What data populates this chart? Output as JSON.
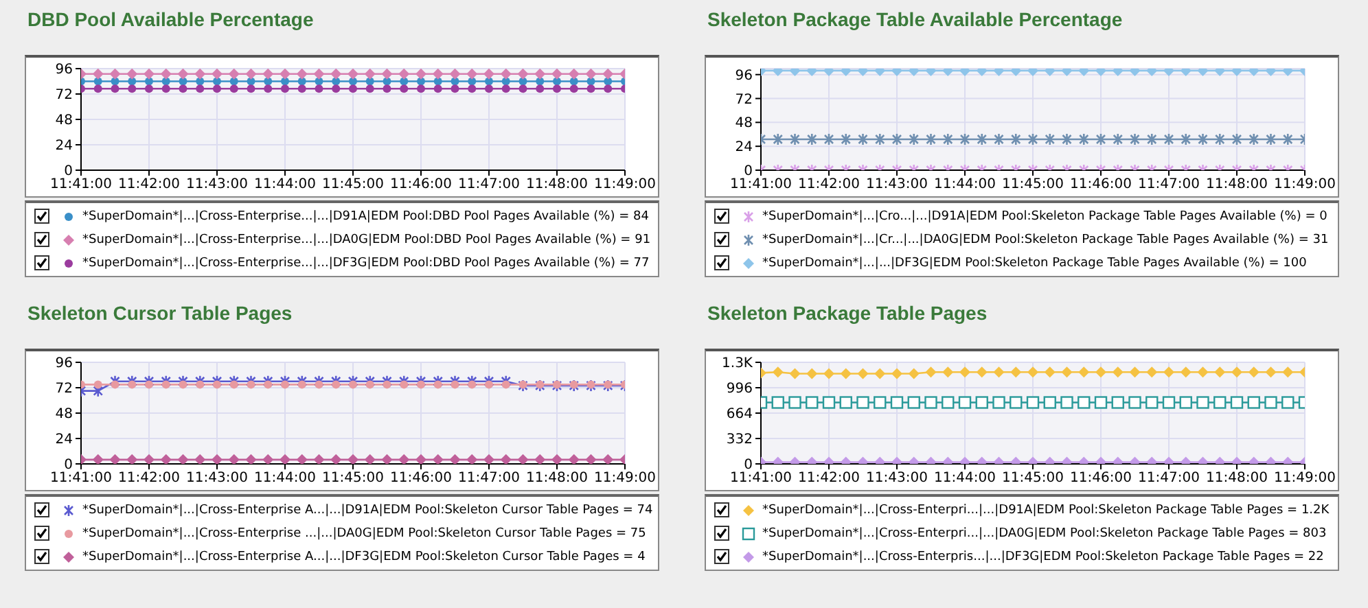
{
  "chart_data": [
    {
      "type": "line",
      "title": "DBD Pool Available Percentage",
      "x": [
        11.683333,
        11.6875,
        11.691667,
        11.695833,
        11.7,
        11.704167,
        11.708333,
        11.7125,
        11.716667,
        11.720833,
        11.725,
        11.729167,
        11.733333,
        11.7375,
        11.741667,
        11.745833,
        11.75,
        11.754167,
        11.758333,
        11.7625,
        11.766667,
        11.770833,
        11.775,
        11.779167,
        11.783333,
        11.7875,
        11.791667,
        11.795833,
        11.8,
        11.804167,
        11.808333,
        11.8125,
        11.816667
      ],
      "xlim": [
        11.683333,
        11.816667
      ],
      "xticks": [
        {
          "value": 11.683333,
          "label": "11:41:00"
        },
        {
          "value": 11.7,
          "label": "11:42:00"
        },
        {
          "value": 11.716667,
          "label": "11:43:00"
        },
        {
          "value": 11.733333,
          "label": "11:44:00"
        },
        {
          "value": 11.75,
          "label": "11:45:00"
        },
        {
          "value": 11.766667,
          "label": "11:46:00"
        },
        {
          "value": 11.783333,
          "label": "11:47:00"
        },
        {
          "value": 11.8,
          "label": "11:48:00"
        },
        {
          "value": 11.816667,
          "label": "11:49:00"
        }
      ],
      "ylim": [
        0,
        96
      ],
      "yticks": [
        0,
        24,
        48,
        72,
        96
      ],
      "grid": true,
      "legend": "bottom",
      "series": [
        {
          "name": "*SuperDomain*|...|Cross-Enterprise...|...|D91A|EDM Pool:DBD Pool Pages Available (%) = 84",
          "color": "#3a8fc8",
          "marker": "circle",
          "values": [
            84,
            84,
            84,
            84,
            84,
            84,
            84,
            84,
            84,
            84,
            84,
            84,
            84,
            84,
            84,
            84,
            84,
            84,
            84,
            84,
            84,
            84,
            84,
            84,
            84,
            84,
            84,
            84,
            84,
            84,
            84,
            84,
            84
          ]
        },
        {
          "name": "*SuperDomain*|...|Cross-Enterprise...|...|DA0G|EDM Pool:DBD Pool Pages Available (%) = 91",
          "color": "#d77fb0",
          "marker": "diamond",
          "values": [
            91,
            91,
            91,
            91,
            91,
            91,
            91,
            91,
            91,
            91,
            91,
            91,
            91,
            91,
            91,
            91,
            91,
            91,
            91,
            91,
            91,
            91,
            91,
            91,
            91,
            91,
            91,
            91,
            91,
            91,
            91,
            91,
            91
          ]
        },
        {
          "name": "*SuperDomain*|...|Cross-Enterprise...|...|DF3G|EDM Pool:DBD Pool Pages Available (%) = 77",
          "color": "#9b3c9e",
          "marker": "circle",
          "values": [
            77,
            77,
            77,
            77,
            77,
            77,
            77,
            77,
            77,
            77,
            77,
            77,
            77,
            77,
            77,
            77,
            77,
            77,
            77,
            77,
            77,
            77,
            77,
            77,
            77,
            77,
            77,
            77,
            77,
            77,
            77,
            77,
            77
          ]
        }
      ]
    },
    {
      "type": "line",
      "title": "Skeleton Package Table Available Percentage",
      "x": [
        11.683333,
        11.6875,
        11.691667,
        11.695833,
        11.7,
        11.704167,
        11.708333,
        11.7125,
        11.716667,
        11.720833,
        11.725,
        11.729167,
        11.733333,
        11.7375,
        11.741667,
        11.745833,
        11.75,
        11.754167,
        11.758333,
        11.7625,
        11.766667,
        11.770833,
        11.775,
        11.779167,
        11.783333,
        11.7875,
        11.791667,
        11.795833,
        11.8,
        11.804167,
        11.808333,
        11.8125,
        11.816667
      ],
      "xlim": [
        11.683333,
        11.816667
      ],
      "xticks": [
        {
          "value": 11.683333,
          "label": "11:41:00"
        },
        {
          "value": 11.7,
          "label": "11:42:00"
        },
        {
          "value": 11.716667,
          "label": "11:43:00"
        },
        {
          "value": 11.733333,
          "label": "11:44:00"
        },
        {
          "value": 11.75,
          "label": "11:45:00"
        },
        {
          "value": 11.766667,
          "label": "11:46:00"
        },
        {
          "value": 11.783333,
          "label": "11:47:00"
        },
        {
          "value": 11.8,
          "label": "11:48:00"
        },
        {
          "value": 11.816667,
          "label": "11:49:00"
        }
      ],
      "ylim": [
        0,
        102
      ],
      "yticks": [
        0,
        24,
        48,
        72,
        96
      ],
      "grid": true,
      "legend": "bottom",
      "series": [
        {
          "name": "*SuperDomain*|...|Cro...|...|D91A|EDM Pool:Skeleton Package Table Pages Available (%) = 0",
          "color": "#d9a0e8",
          "marker": "cross",
          "values": [
            0,
            0,
            0,
            0,
            0,
            0,
            0,
            0,
            0,
            0,
            0,
            0,
            0,
            0,
            0,
            0,
            0,
            0,
            0,
            0,
            0,
            0,
            0,
            0,
            0,
            0,
            0,
            0,
            0,
            0,
            0,
            0,
            0
          ]
        },
        {
          "name": "*SuperDomain*|...|Cr...|...|DA0G|EDM Pool:Skeleton Package Table Pages Available (%) = 31",
          "color": "#6f8fb0",
          "marker": "cross",
          "values": [
            31,
            31,
            31,
            31,
            31,
            31,
            31,
            31,
            31,
            31,
            31,
            31,
            31,
            31,
            31,
            31,
            31,
            31,
            31,
            31,
            31,
            31,
            31,
            31,
            31,
            31,
            31,
            31,
            31,
            31,
            31,
            31,
            31
          ]
        },
        {
          "name": "*SuperDomain*|...|...|DF3G|EDM Pool:Skeleton Package Table Pages Available (%) = 100",
          "color": "#8ec5ea",
          "marker": "diamond",
          "values": [
            100,
            100,
            100,
            100,
            100,
            100,
            100,
            100,
            100,
            100,
            100,
            100,
            100,
            100,
            100,
            100,
            100,
            100,
            100,
            100,
            100,
            100,
            100,
            100,
            100,
            100,
            100,
            100,
            100,
            100,
            100,
            100,
            100
          ]
        }
      ]
    },
    {
      "type": "line",
      "title": "Skeleton Cursor Table Pages",
      "x": [
        11.683333,
        11.6875,
        11.691667,
        11.695833,
        11.7,
        11.704167,
        11.708333,
        11.7125,
        11.716667,
        11.720833,
        11.725,
        11.729167,
        11.733333,
        11.7375,
        11.741667,
        11.745833,
        11.75,
        11.754167,
        11.758333,
        11.7625,
        11.766667,
        11.770833,
        11.775,
        11.779167,
        11.783333,
        11.7875,
        11.791667,
        11.795833,
        11.8,
        11.804167,
        11.808333,
        11.8125,
        11.816667
      ],
      "xlim": [
        11.683333,
        11.816667
      ],
      "xticks": [
        {
          "value": 11.683333,
          "label": "11:41:00"
        },
        {
          "value": 11.7,
          "label": "11:42:00"
        },
        {
          "value": 11.716667,
          "label": "11:43:00"
        },
        {
          "value": 11.733333,
          "label": "11:44:00"
        },
        {
          "value": 11.75,
          "label": "11:45:00"
        },
        {
          "value": 11.766667,
          "label": "11:46:00"
        },
        {
          "value": 11.783333,
          "label": "11:47:00"
        },
        {
          "value": 11.8,
          "label": "11:48:00"
        },
        {
          "value": 11.816667,
          "label": "11:49:00"
        }
      ],
      "ylim": [
        0,
        96
      ],
      "yticks": [
        0,
        24,
        48,
        72,
        96
      ],
      "grid": true,
      "legend": "bottom",
      "series": [
        {
          "name": "*SuperDomain*|...|Cross-Enterprise A...|...|D91A|EDM Pool:Skeleton Cursor Table Pages = 74",
          "color": "#5a5ad0",
          "marker": "cross",
          "values": [
            69,
            69,
            78,
            78,
            78,
            78,
            78,
            78,
            78,
            78,
            78,
            78,
            78,
            78,
            78,
            78,
            78,
            78,
            78,
            78,
            78,
            78,
            78,
            78,
            78,
            78,
            74,
            74,
            74,
            74,
            74,
            74,
            74
          ]
        },
        {
          "name": "*SuperDomain*|...|Cross-Enterprise ...|...|DA0G|EDM Pool:Skeleton Cursor Table Pages = 75",
          "color": "#e89aa0",
          "marker": "circle",
          "values": [
            75,
            75,
            75,
            75,
            75,
            75,
            75,
            75,
            75,
            75,
            75,
            75,
            75,
            75,
            75,
            75,
            75,
            75,
            75,
            75,
            75,
            75,
            75,
            75,
            75,
            75,
            75,
            75,
            75,
            75,
            75,
            75,
            75
          ]
        },
        {
          "name": "*SuperDomain*|...|Cross-Enterprise A...|...|DF3G|EDM Pool:Skeleton Cursor Table Pages = 4",
          "color": "#c0609a",
          "marker": "diamond",
          "values": [
            4,
            4,
            4,
            4,
            4,
            4,
            4,
            4,
            4,
            4,
            4,
            4,
            4,
            4,
            4,
            4,
            4,
            4,
            4,
            4,
            4,
            4,
            4,
            4,
            4,
            4,
            4,
            4,
            4,
            4,
            4,
            4,
            4
          ]
        }
      ]
    },
    {
      "type": "line",
      "title": "Skeleton Package Table Pages",
      "x": [
        11.683333,
        11.6875,
        11.691667,
        11.695833,
        11.7,
        11.704167,
        11.708333,
        11.7125,
        11.716667,
        11.720833,
        11.725,
        11.729167,
        11.733333,
        11.7375,
        11.741667,
        11.745833,
        11.75,
        11.754167,
        11.758333,
        11.7625,
        11.766667,
        11.770833,
        11.775,
        11.779167,
        11.783333,
        11.7875,
        11.791667,
        11.795833,
        11.8,
        11.804167,
        11.808333,
        11.8125,
        11.816667
      ],
      "xlim": [
        11.683333,
        11.816667
      ],
      "xticks": [
        {
          "value": 11.683333,
          "label": "11:41:00"
        },
        {
          "value": 11.7,
          "label": "11:42:00"
        },
        {
          "value": 11.716667,
          "label": "11:43:00"
        },
        {
          "value": 11.733333,
          "label": "11:44:00"
        },
        {
          "value": 11.75,
          "label": "11:45:00"
        },
        {
          "value": 11.766667,
          "label": "11:46:00"
        },
        {
          "value": 11.783333,
          "label": "11:47:00"
        },
        {
          "value": 11.8,
          "label": "11:48:00"
        },
        {
          "value": 11.816667,
          "label": "11:49:00"
        }
      ],
      "ylim": [
        0,
        1328
      ],
      "yticks": [
        0,
        332,
        664,
        996,
        {
          "value": 1328,
          "label": "1.3K"
        }
      ],
      "grid": true,
      "legend": "bottom",
      "series": [
        {
          "name": "*SuperDomain*|...|Cross-Enterpri...|...|D91A|EDM Pool:Skeleton Package Table Pages = 1.2K",
          "color": "#f5c242",
          "marker": "diamond",
          "values": [
            1190,
            1200,
            1180,
            1180,
            1180,
            1180,
            1180,
            1180,
            1180,
            1180,
            1200,
            1200,
            1200,
            1200,
            1200,
            1200,
            1200,
            1200,
            1200,
            1200,
            1200,
            1200,
            1200,
            1200,
            1200,
            1200,
            1200,
            1200,
            1200,
            1200,
            1200,
            1200,
            1200
          ]
        },
        {
          "name": "*SuperDomain*|...|Cross-Enterpri...|...|DA0G|EDM Pool:Skeleton Package Table Pages = 803",
          "color": "#2a9a9a",
          "marker": "square",
          "values": [
            803,
            803,
            803,
            803,
            803,
            803,
            803,
            803,
            803,
            803,
            803,
            803,
            803,
            803,
            803,
            803,
            803,
            803,
            803,
            803,
            803,
            803,
            803,
            803,
            803,
            803,
            803,
            803,
            803,
            803,
            803,
            803,
            803
          ]
        },
        {
          "name": "*SuperDomain*|...|Cross-Enterpris...|...|DF3G|EDM Pool:Skeleton Package Table Pages = 22",
          "color": "#c39ae8",
          "marker": "diamond",
          "values": [
            22,
            22,
            22,
            22,
            22,
            22,
            22,
            22,
            22,
            22,
            22,
            22,
            22,
            22,
            22,
            22,
            22,
            22,
            22,
            22,
            22,
            22,
            22,
            22,
            22,
            22,
            22,
            22,
            22,
            22,
            22,
            22,
            22
          ]
        }
      ]
    }
  ]
}
